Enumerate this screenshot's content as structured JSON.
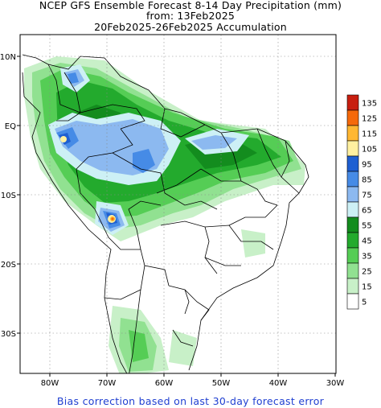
{
  "header": {
    "title_line1": "NCEP GFS Ensemble Forecast 8-14 Day Precipitation (mm)",
    "title_line2": "from: 13Feb2025",
    "title_line3": "20Feb2025-26Feb2025 Accumulation"
  },
  "axes": {
    "lat_labels": [
      "10N",
      "EQ",
      "10S",
      "20S",
      "30S"
    ],
    "lon_labels": [
      "80W",
      "70W",
      "60W",
      "50W",
      "40W",
      "30W"
    ]
  },
  "legend": {
    "items": [
      {
        "label": "135",
        "color": "#c81e0f"
      },
      {
        "label": "125",
        "color": "#f5690a"
      },
      {
        "label": "115",
        "color": "#ffb732"
      },
      {
        "label": "105",
        "color": "#fff0a0"
      },
      {
        "label": "95",
        "color": "#1e5fd2"
      },
      {
        "label": "85",
        "color": "#468be6"
      },
      {
        "label": "75",
        "color": "#8cb9f0"
      },
      {
        "label": "65",
        "color": "#cdf0f5"
      },
      {
        "label": "55",
        "color": "#138c1e"
      },
      {
        "label": "45",
        "color": "#23aa2d"
      },
      {
        "label": "35",
        "color": "#55cd55"
      },
      {
        "label": "25",
        "color": "#91e191"
      },
      {
        "label": "15",
        "color": "#c8f0c8"
      },
      {
        "label": "5",
        "color": "#ffffff"
      }
    ]
  },
  "footer": {
    "note": "Bias correction based on last 30-day forecast error"
  }
}
